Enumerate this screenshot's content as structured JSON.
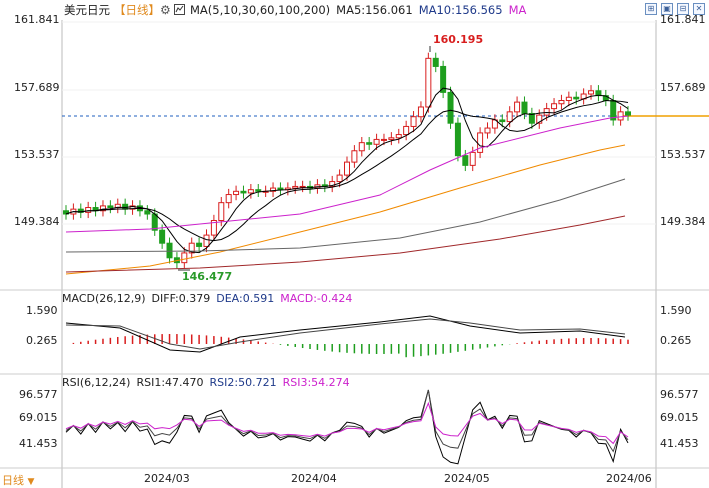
{
  "toolbar": {
    "symbol": "美元日元",
    "period": "【日线】",
    "ma_legend_title": "MA(5,10,30,60,100,200)",
    "ma5": "MA5:156.061",
    "ma10": "MA10:156.565",
    "ma_more": "MA"
  },
  "window_buttons": [
    "grid-icon",
    "image-icon",
    "settings-icon",
    "close-icon"
  ],
  "price_axis": {
    "left_labels": [
      "161.841",
      "157.689",
      "153.537",
      "149.384"
    ],
    "right_labels": [
      "161.841",
      "157.689",
      "153.537",
      "149.384"
    ]
  },
  "annotations": {
    "high": "160.195",
    "low": "146.477"
  },
  "macd": {
    "legend": "MACD(26,12,9)",
    "diff": "DIFF:0.379",
    "dea": "DEA:0.591",
    "macd": "MACD:-0.424",
    "left_labels": [
      "1.590",
      "0.265"
    ],
    "right_labels": [
      "1.590",
      "0.265"
    ]
  },
  "rsi": {
    "legend": "RSI(6,12,24)",
    "rsi1": "RSI1:47.470",
    "rsi2": "RSI2:50.721",
    "rsi3": "RSI3:54.274",
    "left_labels": [
      "96.577",
      "69.015",
      "41.453"
    ],
    "right_labels": [
      "96.577",
      "69.015",
      "41.453"
    ]
  },
  "x_axis": {
    "labels": [
      "2024/03",
      "2024/04",
      "2024/05",
      "2024/06"
    ],
    "bottom_tag": "日线"
  },
  "colors": {
    "up": "#d81e1e",
    "down": "#1e9e1e",
    "ma5": "#000000",
    "ma10": "#000000",
    "ma30": "#cc22cc",
    "ma60": "#f08a00",
    "ma100": "#666666",
    "ma200": "#a0282a",
    "current_price_line": "#1f5fbf",
    "orange_line": "#f0a000"
  }
}
